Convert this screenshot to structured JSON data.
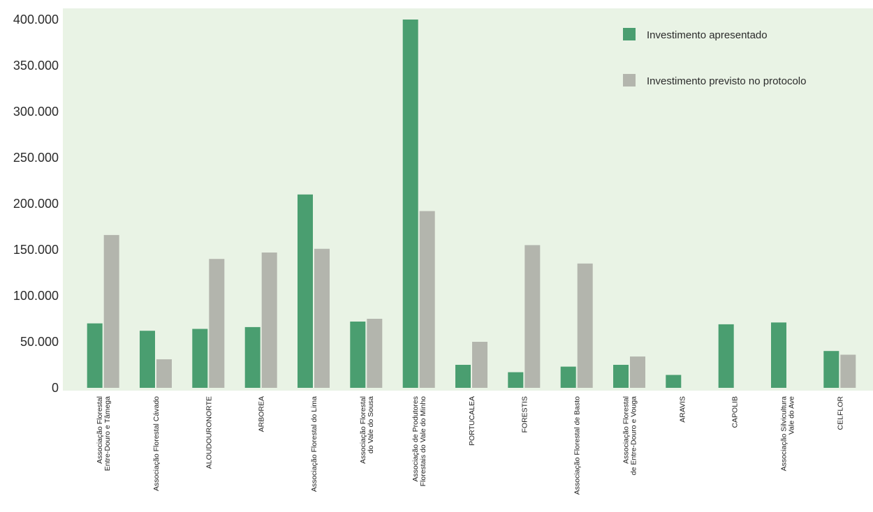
{
  "chart_data": {
    "type": "bar",
    "title": "",
    "xlabel": "",
    "ylabel": "",
    "ylim": [
      0,
      400000
    ],
    "y_ticks": [
      0,
      50000,
      100000,
      150000,
      200000,
      250000,
      300000,
      350000,
      400000
    ],
    "y_tick_labels": [
      "0",
      "50.000",
      "100.000",
      "150.000",
      "200.000",
      "250.000",
      "300.000",
      "350.000",
      "400.000"
    ],
    "grid": false,
    "legend_position": "top-right",
    "categories": [
      [
        "Associação Florestal",
        "Entre-Douro e Tâmega"
      ],
      [
        "Associação Florestal Cávado"
      ],
      [
        "ALOUDOURONORTE"
      ],
      [
        "ARBOREA"
      ],
      [
        "Associação Florestal do Lima"
      ],
      [
        "Associação Florestal",
        "do Vale do Sousa"
      ],
      [
        "Associação de Produtores",
        "Florestais do Vale do Minho"
      ],
      [
        "PORTUCALEA"
      ],
      [
        "FORESTIS"
      ],
      [
        "Associação Florestal de Basto"
      ],
      [
        "Associação Florestal",
        "de Entre-Douro e Vouga"
      ],
      [
        "ARAVIS"
      ],
      [
        "CAPOLIB"
      ],
      [
        "Associação Silvicultura",
        "Vale do Ave"
      ],
      [
        "CELFLOR"
      ]
    ],
    "series": [
      {
        "name": "Investimento apresentado",
        "color": "#4a9e70",
        "values": [
          70000,
          62000,
          64000,
          66000,
          210000,
          72000,
          400000,
          25000,
          17000,
          23000,
          25000,
          14000,
          69000,
          71000,
          40000
        ]
      },
      {
        "name": "Investimento previsto no protocolo",
        "color": "#b3b5ad",
        "values": [
          166000,
          31000,
          140000,
          147000,
          151000,
          75000,
          192000,
          50000,
          155000,
          135000,
          34000,
          0,
          0,
          0,
          36000
        ]
      }
    ]
  }
}
